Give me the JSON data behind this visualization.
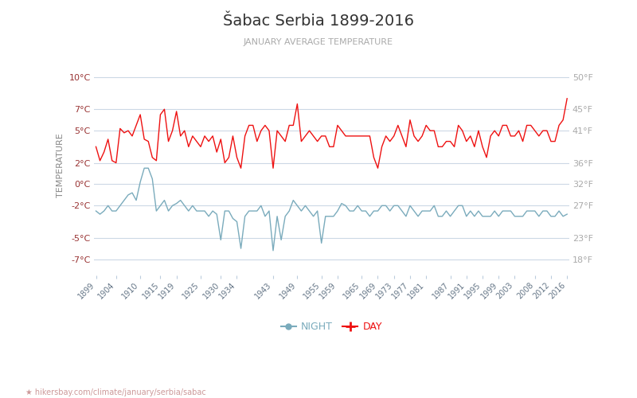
{
  "title": "Šabac Serbia 1899-2016",
  "subtitle": "JANUARY AVERAGE TEMPERATURE",
  "ylabel": "TEMPERATURE",
  "legend_night": "NIGHT",
  "legend_day": "DAY",
  "years": [
    1899,
    1900,
    1901,
    1902,
    1903,
    1904,
    1905,
    1906,
    1907,
    1908,
    1909,
    1910,
    1911,
    1912,
    1913,
    1914,
    1915,
    1916,
    1917,
    1918,
    1919,
    1920,
    1921,
    1922,
    1923,
    1924,
    1925,
    1926,
    1927,
    1928,
    1929,
    1930,
    1931,
    1932,
    1933,
    1934,
    1935,
    1936,
    1937,
    1938,
    1939,
    1940,
    1941,
    1942,
    1943,
    1944,
    1945,
    1946,
    1947,
    1948,
    1949,
    1950,
    1951,
    1952,
    1953,
    1954,
    1955,
    1956,
    1957,
    1958,
    1959,
    1960,
    1961,
    1962,
    1963,
    1964,
    1965,
    1966,
    1967,
    1968,
    1969,
    1970,
    1971,
    1972,
    1973,
    1974,
    1975,
    1976,
    1977,
    1978,
    1979,
    1980,
    1981,
    1982,
    1983,
    1984,
    1985,
    1986,
    1987,
    1988,
    1989,
    1990,
    1991,
    1992,
    1993,
    1994,
    1995,
    1996,
    1997,
    1998,
    1999,
    2000,
    2001,
    2002,
    2003,
    2004,
    2005,
    2006,
    2007,
    2008,
    2009,
    2010,
    2011,
    2012,
    2013,
    2014,
    2015,
    2016
  ],
  "day_temps": [
    3.5,
    2.2,
    3.0,
    4.2,
    2.2,
    2.0,
    5.2,
    4.8,
    5.0,
    4.5,
    5.5,
    6.5,
    4.2,
    4.0,
    2.5,
    2.2,
    6.5,
    7.0,
    4.0,
    5.0,
    6.8,
    4.5,
    5.0,
    3.5,
    4.5,
    4.0,
    3.5,
    4.5,
    4.0,
    4.5,
    3.0,
    4.2,
    2.0,
    2.5,
    4.5,
    2.5,
    1.5,
    4.5,
    5.5,
    5.5,
    4.0,
    5.0,
    5.5,
    5.0,
    1.5,
    5.0,
    4.5,
    4.0,
    5.5,
    5.5,
    7.5,
    4.0,
    4.5,
    5.0,
    4.5,
    4.0,
    4.5,
    4.5,
    3.5,
    3.5,
    5.5,
    5.0,
    4.5,
    4.5,
    4.5,
    4.5,
    4.5,
    4.5,
    4.5,
    2.5,
    1.5,
    3.5,
    4.5,
    4.0,
    4.5,
    5.5,
    4.5,
    3.5,
    6.0,
    4.5,
    4.0,
    4.5,
    5.5,
    5.0,
    5.0,
    3.5,
    3.5,
    4.0,
    4.0,
    3.5,
    5.5,
    5.0,
    4.0,
    4.5,
    3.5,
    5.0,
    3.5,
    2.5,
    4.5,
    5.0,
    4.5,
    5.5,
    5.5,
    4.5,
    4.5,
    5.0,
    4.0,
    5.5,
    5.5,
    5.0,
    4.5,
    5.0,
    5.0,
    4.0,
    4.0,
    5.5,
    6.0,
    8.0
  ],
  "night_temps": [
    -2.5,
    -2.8,
    -2.5,
    -2.0,
    -2.5,
    -2.5,
    -2.0,
    -1.5,
    -1.0,
    -0.8,
    -1.5,
    0.2,
    1.5,
    1.5,
    0.5,
    -2.5,
    -2.0,
    -1.5,
    -2.5,
    -2.0,
    -1.8,
    -1.5,
    -2.0,
    -2.5,
    -2.0,
    -2.5,
    -2.5,
    -2.5,
    -3.0,
    -2.5,
    -2.8,
    -5.2,
    -2.5,
    -2.5,
    -3.2,
    -3.5,
    -6.0,
    -3.0,
    -2.5,
    -2.5,
    -2.5,
    -2.0,
    -3.0,
    -2.5,
    -6.2,
    -3.0,
    -5.2,
    -3.0,
    -2.5,
    -1.5,
    -2.0,
    -2.5,
    -2.0,
    -2.5,
    -3.0,
    -2.5,
    -5.5,
    -3.0,
    -3.0,
    -3.0,
    -2.5,
    -1.8,
    -2.0,
    -2.5,
    -2.5,
    -2.0,
    -2.5,
    -2.5,
    -3.0,
    -2.5,
    -2.5,
    -2.0,
    -2.0,
    -2.5,
    -2.0,
    -2.0,
    -2.5,
    -3.0,
    -2.0,
    -2.5,
    -3.0,
    -2.5,
    -2.5,
    -2.5,
    -2.0,
    -3.0,
    -3.0,
    -2.5,
    -3.0,
    -2.5,
    -2.0,
    -2.0,
    -3.0,
    -2.5,
    -3.0,
    -2.5,
    -3.0,
    -3.0,
    -3.0,
    -2.5,
    -3.0,
    -2.5,
    -2.5,
    -2.5,
    -3.0,
    -3.0,
    -3.0,
    -2.5,
    -2.5,
    -2.5,
    -3.0,
    -2.5,
    -2.5,
    -3.0,
    -3.0,
    -2.5,
    -3.0,
    -2.8
  ],
  "ylim": [
    -8.5,
    12.0
  ],
  "yticks_celsius": [
    -7,
    -5,
    -2,
    0,
    2,
    5,
    7,
    10
  ],
  "yticks_fahrenheit": [
    18,
    23,
    27,
    32,
    36,
    41,
    45,
    50
  ],
  "xtick_years": [
    1899,
    1904,
    1910,
    1915,
    1919,
    1925,
    1930,
    1934,
    1943,
    1949,
    1955,
    1959,
    1965,
    1969,
    1973,
    1977,
    1981,
    1987,
    1991,
    1995,
    1999,
    2003,
    2008,
    2012,
    2016
  ],
  "day_color": "#ee1111",
  "night_color": "#7aabbc",
  "grid_color": "#ccd8e5",
  "title_color": "#333333",
  "subtitle_color": "#aaaaaa",
  "ylabel_color": "#888888",
  "tick_color_left": "#993333",
  "tick_color_right": "#aaaaaa",
  "xtick_color": "#667788",
  "background_color": "#ffffff",
  "url_color": "#cc9999",
  "url_text": "★ hikersbay.com/climate/january/serbia/sabac"
}
